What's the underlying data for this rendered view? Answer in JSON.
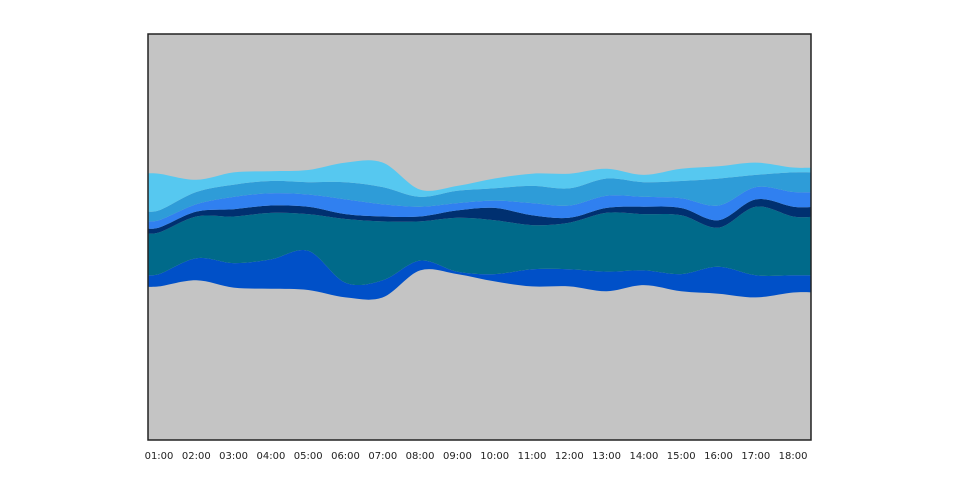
{
  "chart_data": {
    "type": "area",
    "subtype": "streamgraph",
    "title": "",
    "xlabel": "",
    "ylabel": "",
    "x": [
      "01:00",
      "02:00",
      "03:00",
      "04:00",
      "05:00",
      "06:00",
      "07:00",
      "08:00",
      "09:00",
      "10:00",
      "11:00",
      "12:00",
      "13:00",
      "14:00",
      "15:00",
      "16:00",
      "17:00",
      "18:00"
    ],
    "grid": false,
    "legend": "none",
    "background_color": "#c4c4c4",
    "series": [
      {
        "color": "#0050c8",
        "values": [
          5,
          9,
          10,
          12,
          16,
          6,
          7,
          4,
          1,
          3,
          7,
          7,
          8,
          6,
          7,
          11,
          9,
          7
        ]
      },
      {
        "color": "#006a8a",
        "values": [
          17,
          17,
          19,
          19,
          15,
          26,
          24,
          16,
          22,
          22,
          18,
          19,
          24,
          23,
          24,
          16,
          28,
          24
        ]
      },
      {
        "color": "#003070",
        "values": [
          2,
          2,
          3,
          3,
          3,
          2,
          2,
          2,
          3,
          5,
          4,
          2,
          2,
          3,
          3,
          3,
          3,
          4
        ]
      },
      {
        "color": "#3080f0",
        "values": [
          3,
          3,
          5,
          5,
          5,
          6,
          5,
          4,
          3,
          3,
          5,
          5,
          5,
          4,
          4,
          6,
          5,
          6
        ]
      },
      {
        "color": "#2e9cd8",
        "values": [
          4,
          5,
          5,
          5,
          5,
          7,
          7,
          4,
          5,
          5,
          7,
          7,
          7,
          6,
          7,
          11,
          5,
          8
        ]
      },
      {
        "color": "#56c8f0",
        "values": [
          15,
          5,
          5,
          4,
          5,
          8,
          10,
          3,
          2,
          4,
          5,
          6,
          4,
          3,
          5,
          5,
          5,
          2
        ]
      }
    ]
  }
}
